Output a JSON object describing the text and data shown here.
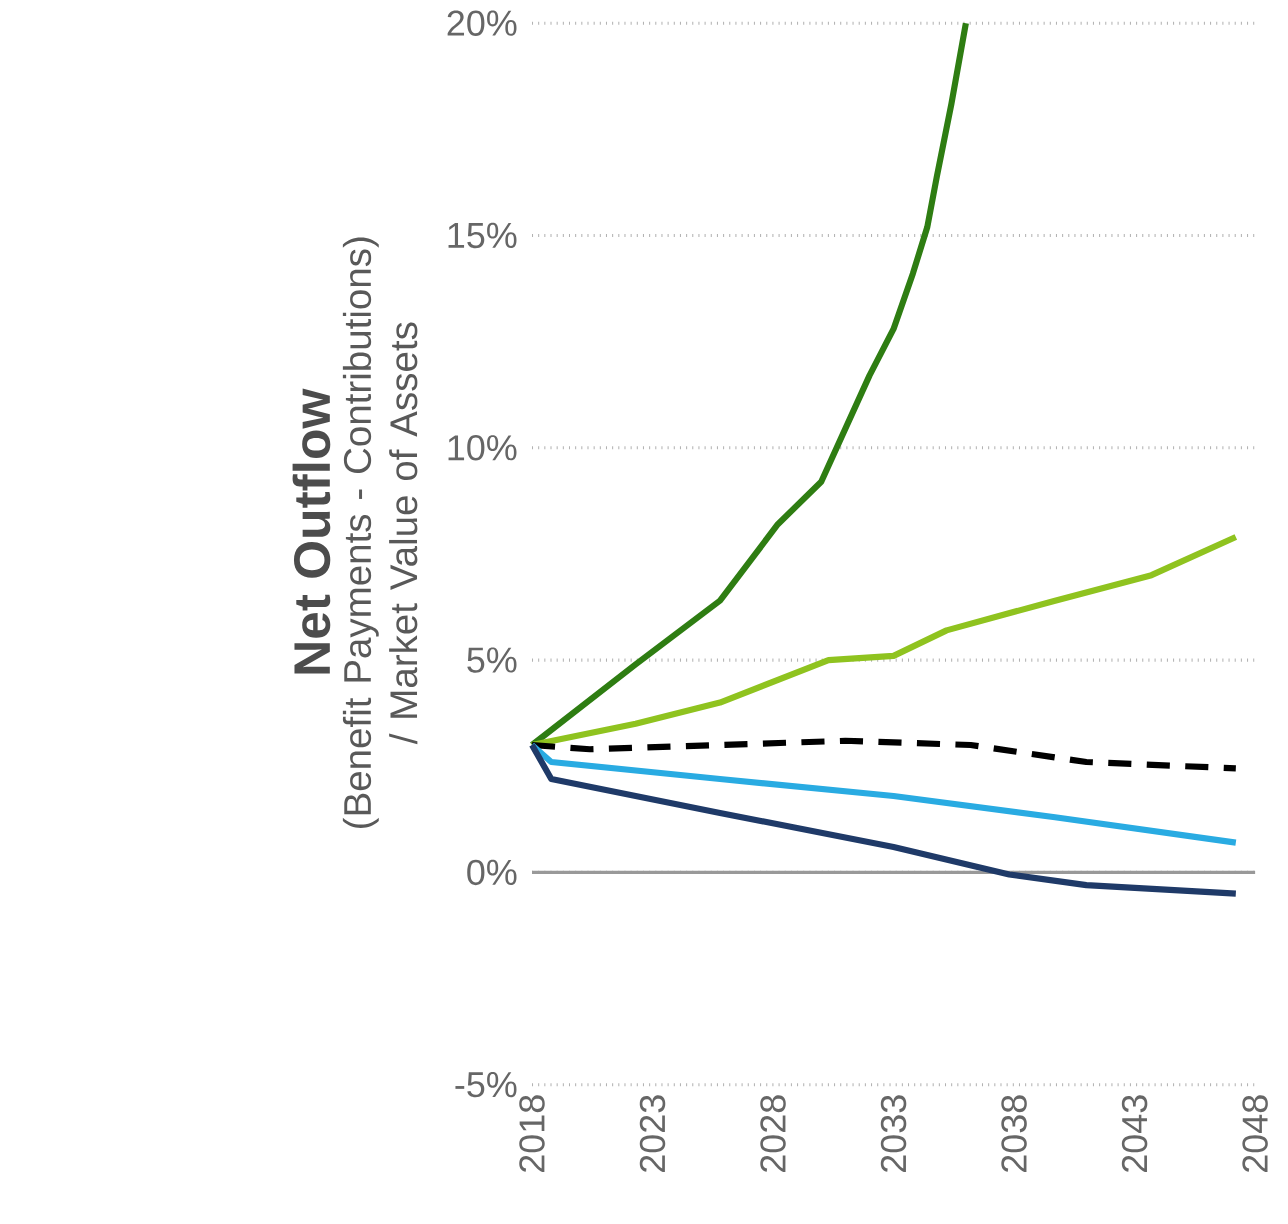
{
  "chart_data": {
    "type": "line",
    "ylabel": "Net Outflow",
    "annotations": [
      "(Benefit Payments - Contributions) / Market Value of Assets"
    ],
    "xlim": [
      2018,
      2048
    ],
    "xticks": [
      2018,
      2023,
      2028,
      2033,
      2038,
      2043,
      2048
    ],
    "ylim": [
      -5,
      20
    ],
    "yticks": [
      {
        "value": -5,
        "label": "-5%"
      },
      {
        "value": 0,
        "label": "0%"
      },
      {
        "value": 5,
        "label": "5%"
      },
      {
        "value": 10,
        "label": "10%"
      },
      {
        "value": 15,
        "label": "15%"
      },
      {
        "value": 20,
        "label": "20%"
      }
    ],
    "grid": "y",
    "ref_lines": [
      {
        "axis": "y",
        "value": 0,
        "color": "#999999",
        "line_style": "solid"
      }
    ],
    "series": [
      {
        "color": "#2e7d12",
        "line_style": "solid",
        "x": [
          2018,
          2022.3,
          2025.8,
          2028.2,
          2030,
          2032,
          2033,
          2033.8,
          2034.4,
          2034.8,
          2035.4,
          2036
        ],
        "values": [
          3.0,
          4.9,
          6.4,
          8.2,
          9.2,
          11.7,
          12.8,
          14.1,
          15.2,
          16.4,
          18.1,
          20
        ]
      },
      {
        "color": "#8fc31f",
        "line_style": "solid",
        "x": [
          2018,
          2022.3,
          2025.8,
          2030.3,
          2033,
          2035.2,
          2039.7,
          2043.7,
          2047.2
        ],
        "values": [
          3.0,
          3.5,
          4.0,
          5.0,
          5.1,
          5.7,
          6.4,
          7.0,
          7.9
        ]
      },
      {
        "color": "#000000",
        "line_style": "dashed",
        "x": [
          2018,
          2020.4,
          2025.8,
          2031,
          2036.2,
          2041,
          2047.2
        ],
        "values": [
          3.0,
          2.9,
          3.0,
          3.1,
          3.0,
          2.6,
          2.45
        ]
      },
      {
        "color": "#29abe2",
        "line_style": "solid",
        "x": [
          2018,
          2018.8,
          2025.8,
          2033,
          2039.7,
          2047.2
        ],
        "values": [
          3.0,
          2.6,
          2.2,
          1.8,
          1.3,
          0.7
        ]
      },
      {
        "color": "#1f3a68",
        "line_style": "solid",
        "x": [
          2018,
          2018.8,
          2025.8,
          2033,
          2037.8,
          2041,
          2047.2
        ],
        "values": [
          3.0,
          2.2,
          1.4,
          0.6,
          -0.05,
          -0.3,
          -0.5
        ]
      }
    ]
  }
}
